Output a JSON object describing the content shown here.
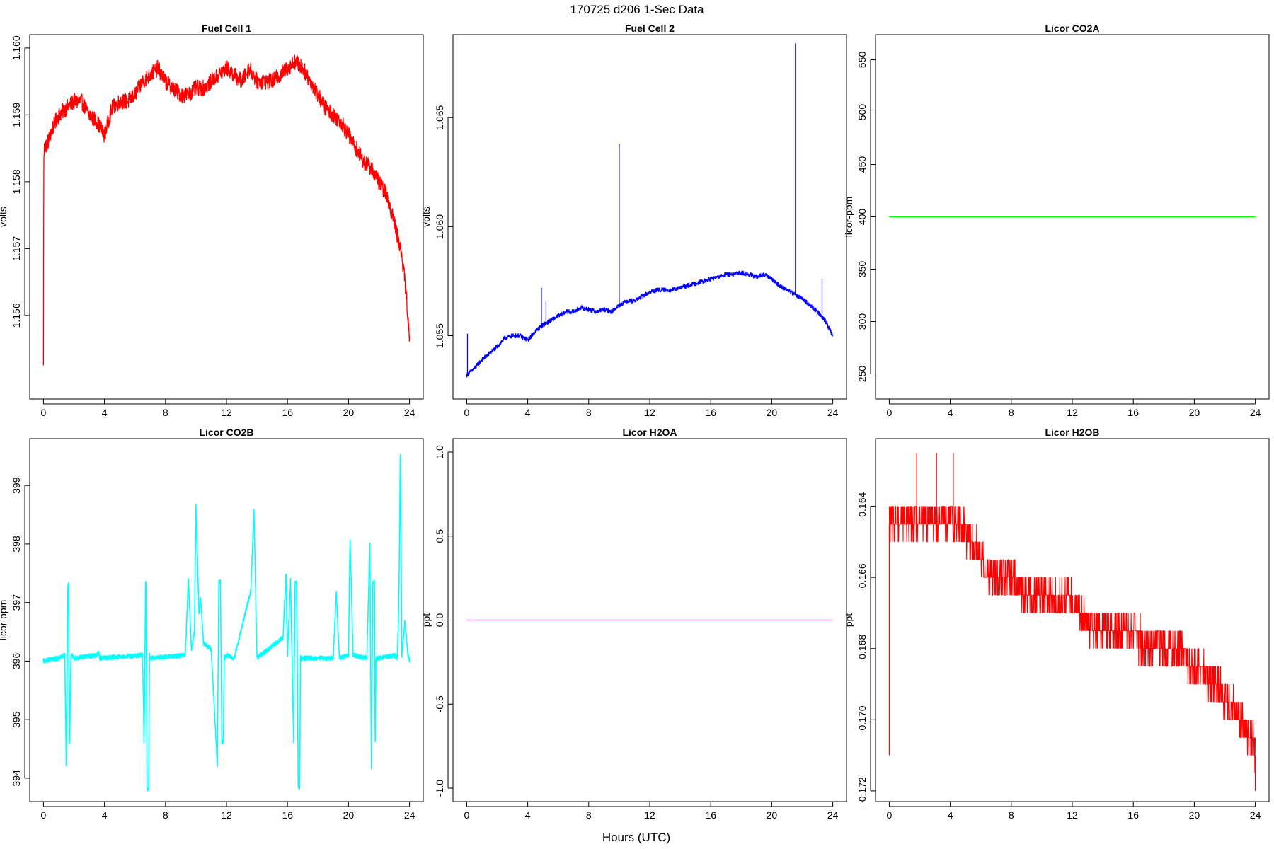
{
  "figure": {
    "title": "170725   d206   1-Sec Data",
    "xlabel": "Hours (UTC)"
  },
  "chart_data": [
    {
      "type": "line",
      "title": "Fuel Cell 1",
      "ylabel": "volts",
      "color": "#ff0000",
      "xlim": [
        -0.9,
        24.9
      ],
      "ylim": [
        1.15475,
        1.1602
      ],
      "xticks": [
        0,
        4,
        8,
        12,
        16,
        20,
        24
      ],
      "yticks": [
        1.156,
        1.157,
        1.158,
        1.159,
        1.16
      ],
      "ytick_labels": [
        "1.156",
        "1.157",
        "1.158",
        "1.159",
        "1.160"
      ],
      "noise": 0.00012,
      "series": [
        {
          "x": [
            0,
            0.02,
            0.05,
            0.3,
            0.6,
            1.0,
            1.5,
            2.0,
            2.5,
            3.0,
            3.5,
            4.0,
            4.5,
            5.0,
            5.5,
            6.0,
            6.5,
            7.0,
            7.5,
            8.0,
            8.5,
            9.0,
            9.5,
            10.0,
            10.5,
            11.0,
            11.5,
            12.0,
            12.5,
            13.0,
            13.5,
            14.0,
            14.5,
            15.0,
            15.5,
            16.0,
            16.5,
            17.0,
            17.5,
            18.0,
            18.5,
            19.0,
            19.5,
            20.0,
            20.5,
            21.0,
            21.5,
            22.0,
            22.5,
            23.0,
            23.5,
            23.8,
            24.0
          ],
          "y": [
            1.1552,
            1.1582,
            1.1585,
            1.1586,
            1.1588,
            1.159,
            1.1591,
            1.1592,
            1.1592,
            1.159,
            1.1589,
            1.1587,
            1.1591,
            1.1592,
            1.1592,
            1.1593,
            1.1595,
            1.1596,
            1.1597,
            1.1595,
            1.1594,
            1.1593,
            1.1593,
            1.1594,
            1.1594,
            1.1595,
            1.1596,
            1.1597,
            1.1596,
            1.1595,
            1.1597,
            1.1595,
            1.1595,
            1.1595,
            1.1596,
            1.1597,
            1.1598,
            1.1597,
            1.1595,
            1.1593,
            1.1591,
            1.159,
            1.1589,
            1.1587,
            1.1585,
            1.1583,
            1.1582,
            1.158,
            1.1578,
            1.1574,
            1.1569,
            1.1563,
            1.1556
          ]
        }
      ]
    },
    {
      "type": "line",
      "title": "Fuel Cell 2",
      "ylabel": "volts",
      "color": "#0000ff",
      "xlim": [
        -0.9,
        24.9
      ],
      "ylim": [
        1.0521,
        1.0688
      ],
      "xticks": [
        0,
        4,
        8,
        12,
        16,
        20,
        24
      ],
      "yticks": [
        1.055,
        1.06,
        1.065
      ],
      "ytick_labels": [
        "1.055",
        "1.060",
        "1.065"
      ],
      "noise": 0.0001,
      "series": [
        {
          "x": [
            0,
            0.5,
            1.0,
            1.5,
            2.0,
            2.5,
            3.0,
            3.5,
            4.0,
            4.5,
            5.0,
            5.5,
            6.0,
            6.5,
            7.0,
            7.5,
            8.0,
            8.5,
            9.0,
            9.5,
            10.0,
            10.5,
            11.0,
            11.5,
            12.0,
            12.5,
            13.0,
            13.5,
            14.0,
            14.5,
            15.0,
            15.5,
            16.0,
            16.5,
            17.0,
            17.5,
            18.0,
            18.5,
            19.0,
            19.5,
            20.0,
            20.5,
            21.0,
            21.5,
            22.0,
            22.5,
            23.0,
            23.5,
            24.0
          ],
          "y": [
            1.0532,
            1.0535,
            1.0539,
            1.0542,
            1.0545,
            1.0549,
            1.055,
            1.055,
            1.0548,
            1.0552,
            1.0555,
            1.0557,
            1.0559,
            1.0561,
            1.0561,
            1.0563,
            1.0562,
            1.0561,
            1.0562,
            1.0561,
            1.0564,
            1.0566,
            1.0566,
            1.0568,
            1.057,
            1.0571,
            1.0571,
            1.0571,
            1.0572,
            1.0573,
            1.0574,
            1.0575,
            1.0576,
            1.0577,
            1.0578,
            1.0578,
            1.0579,
            1.0578,
            1.0577,
            1.0578,
            1.0576,
            1.0573,
            1.0571,
            1.0569,
            1.0567,
            1.0564,
            1.0561,
            1.0557,
            1.055
          ]
        }
      ],
      "spikes": [
        {
          "x": 0.05,
          "y": 1.0551
        },
        {
          "x": 4.9,
          "y": 1.0572
        },
        {
          "x": 5.2,
          "y": 1.0566
        },
        {
          "x": 10.0,
          "y": 1.0638
        },
        {
          "x": 21.55,
          "y": 1.0684
        },
        {
          "x": 23.3,
          "y": 1.0576
        }
      ]
    },
    {
      "type": "line",
      "title": "Licor CO2A",
      "ylabel": "licor-ppm",
      "color": "#00ff00",
      "xlim": [
        -0.9,
        24.9
      ],
      "ylim": [
        226,
        574
      ],
      "xticks": [
        0,
        4,
        8,
        12,
        16,
        20,
        24
      ],
      "yticks": [
        250,
        300,
        350,
        400,
        450,
        500,
        550
      ],
      "ytick_labels": [
        "250",
        "300",
        "350",
        "400",
        "450",
        "500",
        "550"
      ],
      "noise": 0,
      "series": [
        {
          "x": [
            0,
            24
          ],
          "y": [
            400,
            400
          ]
        }
      ]
    },
    {
      "type": "line",
      "title": "Licor CO2B",
      "ylabel": "licor-ppm",
      "color": "#00ffff",
      "xlim": [
        -0.9,
        24.9
      ],
      "ylim": [
        393.6,
        399.8
      ],
      "xticks": [
        0,
        4,
        8,
        12,
        16,
        20,
        24
      ],
      "yticks": [
        394,
        395,
        396,
        397,
        398,
        399
      ],
      "ytick_labels": [
        "394",
        "395",
        "396",
        "397",
        "398",
        "399"
      ],
      "noise": 0.04,
      "series": [
        {
          "x": [
            0,
            1.0,
            1.4,
            1.5,
            1.6,
            1.65,
            1.7,
            1.72,
            1.8,
            2.0,
            3.5,
            3.6,
            3.7,
            6.5,
            6.6,
            6.7,
            6.72,
            6.8,
            6.85,
            6.9,
            6.95,
            7.0,
            9.3,
            9.5,
            9.7,
            9.9,
            10.0,
            10.2,
            10.3,
            10.5,
            11.0,
            11.4,
            11.5,
            11.6,
            11.7,
            11.8,
            11.85,
            11.9,
            12.0,
            12.5,
            13.6,
            13.8,
            14.0,
            15.7,
            15.9,
            16.0,
            16.2,
            16.4,
            16.5,
            16.6,
            16.7,
            16.8,
            16.85,
            16.9,
            17.0,
            19.0,
            19.2,
            19.4,
            20.0,
            20.1,
            20.3,
            21.2,
            21.4,
            21.5,
            21.6,
            21.7,
            21.75,
            21.8,
            22.0,
            23.0,
            23.2,
            23.3,
            23.4,
            23.5,
            23.7,
            23.9,
            24.0
          ],
          "y": [
            396.0,
            396.05,
            396.1,
            394.2,
            397.3,
            397.33,
            394.6,
            394.6,
            396.1,
            396.05,
            396.1,
            396.15,
            396.05,
            396.1,
            394.6,
            397.35,
            397.33,
            393.8,
            393.8,
            393.8,
            396.1,
            396.05,
            396.1,
            397.4,
            396.2,
            396.5,
            398.65,
            396.8,
            397.1,
            396.3,
            396.2,
            394.2,
            397.35,
            397.35,
            394.62,
            394.62,
            396.1,
            396.05,
            396.1,
            396.05,
            397.2,
            398.6,
            396.05,
            396.4,
            397.5,
            396.1,
            397.4,
            394.6,
            397.35,
            397.35,
            393.85,
            393.85,
            396.1,
            396.05,
            396.05,
            396.05,
            397.2,
            396.05,
            396.1,
            398.1,
            396.1,
            396.05,
            398.0,
            394.2,
            397.35,
            397.35,
            394.6,
            396.05,
            396.05,
            396.1,
            396.05,
            397.0,
            399.55,
            396.1,
            396.7,
            396.1,
            396.0
          ]
        }
      ]
    },
    {
      "type": "line",
      "title": "Licor H2OA",
      "ylabel": "ppt",
      "color": "#ee82ee",
      "xlim": [
        -0.9,
        24.9
      ],
      "ylim": [
        -1.08,
        1.08
      ],
      "xticks": [
        0,
        4,
        8,
        12,
        16,
        20,
        24
      ],
      "yticks": [
        -1.0,
        -0.5,
        0.0,
        0.5,
        1.0
      ],
      "ytick_labels": [
        "-1.0",
        "-0.5",
        "0.0",
        "0.5",
        "1.0"
      ],
      "noise": 0,
      "series": [
        {
          "x": [
            0,
            24
          ],
          "y": [
            0,
            0
          ]
        }
      ]
    },
    {
      "type": "line",
      "title": "Licor H2OB",
      "ylabel": "ppt",
      "color": "#ff0000",
      "xlim": [
        -0.9,
        24.9
      ],
      "ylim": [
        -0.1723,
        -0.1621
      ],
      "xticks": [
        0,
        4,
        8,
        12,
        16,
        20,
        24
      ],
      "yticks": [
        -0.172,
        -0.17,
        -0.168,
        -0.166,
        -0.164
      ],
      "ytick_labels": [
        "-0.172",
        "-0.170",
        "-0.168",
        "-0.166",
        "-0.164"
      ],
      "noise": 0,
      "series": [
        {
          "x": [
            0,
            1,
            2,
            3,
            4,
            5,
            6,
            7,
            8,
            9,
            10,
            11,
            12,
            13,
            14,
            15,
            16,
            17,
            18,
            19,
            20,
            21,
            22,
            23,
            24
          ],
          "y": [
            -0.1645,
            -0.1643,
            -0.1643,
            -0.1643,
            -0.1643,
            -0.1647,
            -0.1655,
            -0.166,
            -0.166,
            -0.1665,
            -0.1666,
            -0.1666,
            -0.1666,
            -0.1673,
            -0.1675,
            -0.1675,
            -0.1676,
            -0.168,
            -0.168,
            -0.1681,
            -0.1685,
            -0.1688,
            -0.1693,
            -0.17,
            -0.1708
          ]
        }
      ],
      "outliers": [
        {
          "x": 0.0,
          "y": -0.171
        },
        {
          "x": 1.8,
          "y": -0.1625
        },
        {
          "x": 3.1,
          "y": -0.1625
        },
        {
          "x": 4.2,
          "y": -0.1625
        },
        {
          "x": 24.0,
          "y": -0.172
        }
      ]
    }
  ]
}
